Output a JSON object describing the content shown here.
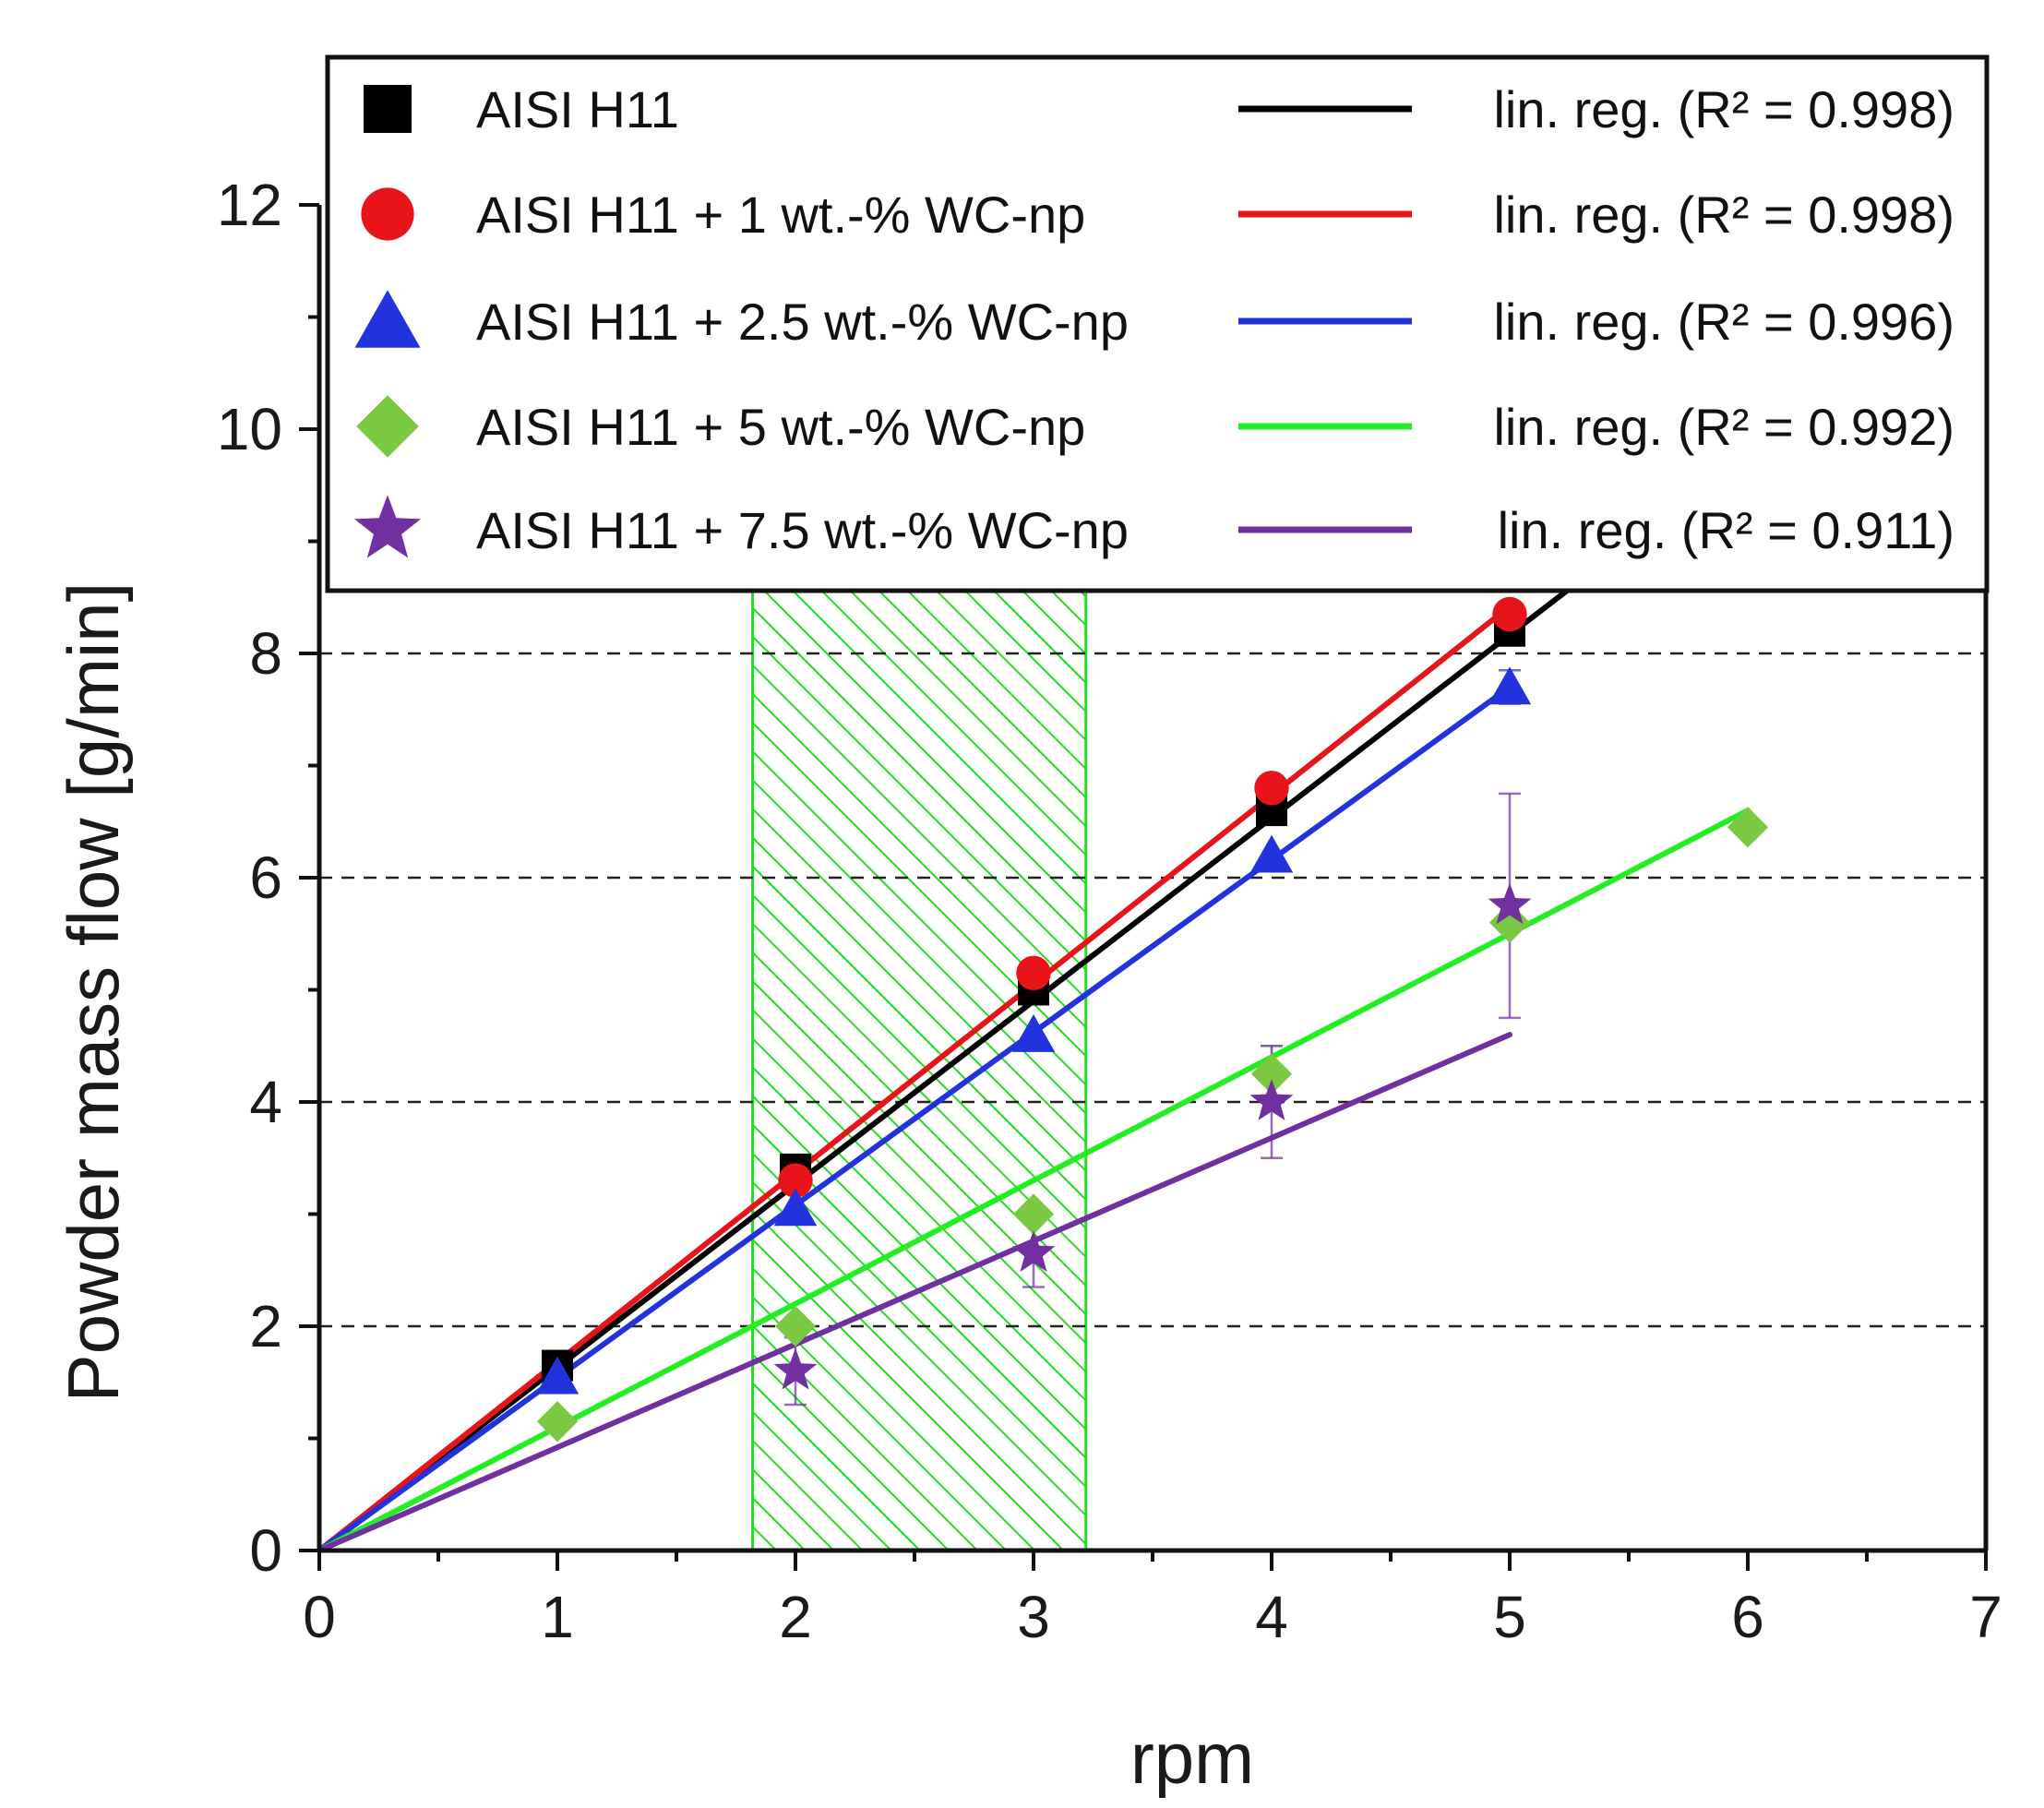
{
  "chart_data": {
    "type": "scatter",
    "xlabel": "rpm",
    "ylabel": "Powder mass flow [g/min]",
    "xlim": [
      0,
      7
    ],
    "ylim": [
      0,
      12
    ],
    "x_ticks": [
      0,
      1,
      2,
      3,
      4,
      5,
      6,
      7
    ],
    "y_ticks": [
      0,
      2,
      4,
      6,
      8,
      10,
      12
    ],
    "x_tick_labels": [
      "0",
      "1",
      "2",
      "3",
      "4",
      "5",
      "6",
      "7"
    ],
    "y_tick_labels": [
      "0",
      "2",
      "4",
      "6",
      "8",
      "10",
      "12"
    ],
    "grid": "dashed horizontal lines at y = 2, 4, 6, 8",
    "gridlines_y": [
      2,
      4,
      6,
      8
    ],
    "legend_position": "top",
    "highlight_region": {
      "x_range": [
        1.82,
        3.22
      ],
      "y_range": [
        0,
        8.6
      ],
      "color": "#22dd22",
      "pattern": "diagonal hatch"
    },
    "series": [
      {
        "name": "AISI H11",
        "marker": "square",
        "color": "#000000",
        "x": [
          1,
          2,
          3,
          4,
          5
        ],
        "y": [
          1.65,
          3.4,
          5.0,
          6.6,
          8.2
        ],
        "error": [
          0.05,
          0.05,
          0.05,
          0.05,
          0.05
        ],
        "fit": {
          "label": "lin. reg. (R² = 0.998)",
          "x_range": [
            0,
            6
          ],
          "y_range": [
            0,
            9.8
          ]
        }
      },
      {
        "name": "AISI H11 + 1 wt.-% WC-np",
        "marker": "circle",
        "color": "#e8141a",
        "x": [
          2,
          3,
          4,
          5
        ],
        "y": [
          3.3,
          5.15,
          6.8,
          8.35
        ],
        "error": [
          0.05,
          0.05,
          0.05,
          0.05
        ],
        "fit": {
          "label": "lin. reg. (R² = 0.998)",
          "x_range": [
            0,
            5
          ],
          "y_range": [
            0,
            8.42
          ]
        }
      },
      {
        "name": "AISI H11 + 2.5 wt.-% WC-np",
        "marker": "triangle",
        "color": "#2233dd",
        "x": [
          1,
          2,
          3,
          4,
          5
        ],
        "y": [
          1.55,
          3.05,
          4.6,
          6.2,
          7.7
        ],
        "error": [
          0.05,
          0.05,
          0.05,
          0.05,
          0.15
        ],
        "fit": {
          "label": "lin. reg. (R² = 0.996)",
          "x_range": [
            0,
            5
          ],
          "y_range": [
            0,
            7.7
          ]
        }
      },
      {
        "name": "AISI H11 + 5 wt.-% WC-np",
        "marker": "diamond",
        "color": "#7bc843",
        "line_color": "#22ee22",
        "x": [
          1,
          2,
          3,
          4,
          5,
          6
        ],
        "y": [
          1.15,
          2.0,
          3.0,
          4.25,
          5.6,
          6.45
        ],
        "error": [
          0.05,
          0.05,
          0.05,
          0.25,
          0.05,
          0.05
        ],
        "fit": {
          "label": "lin. reg. (R² = 0.992)",
          "x_range": [
            0,
            6
          ],
          "y_range": [
            0,
            6.6
          ]
        }
      },
      {
        "name": "AISI H11 + 7.5 wt.-% WC-np",
        "marker": "star",
        "color": "#7030a0",
        "x": [
          2,
          3,
          4,
          5
        ],
        "y": [
          1.6,
          2.65,
          4.0,
          5.75
        ],
        "error": [
          0.3,
          0.3,
          0.5,
          1.0
        ],
        "fit": {
          "label": "lin. reg. (R² = 0.911)",
          "x_range": [
            0,
            5
          ],
          "y_range": [
            0,
            4.6
          ]
        }
      }
    ]
  }
}
